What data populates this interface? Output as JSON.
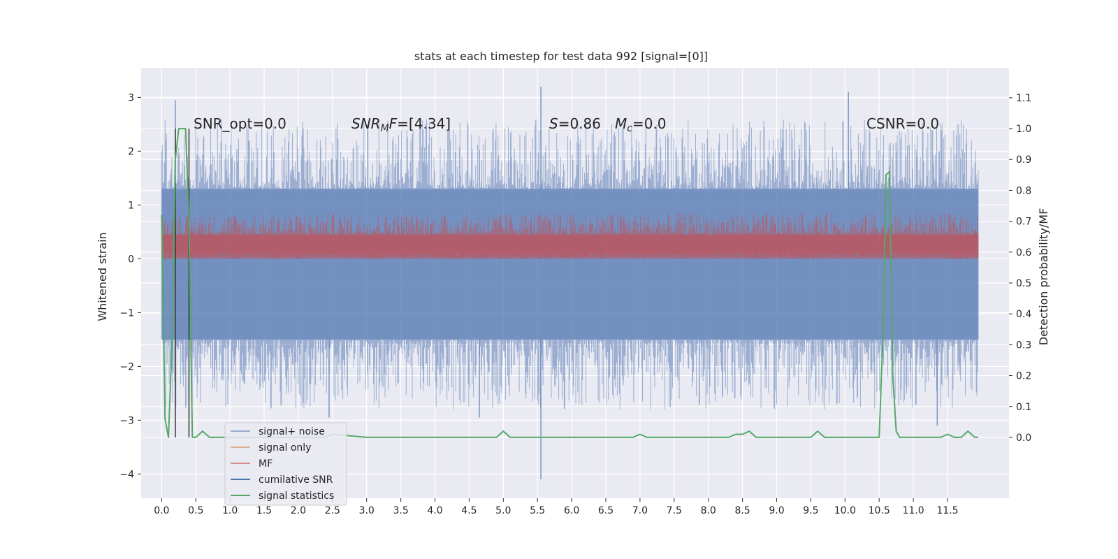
{
  "chart_data": {
    "type": "line",
    "title": "stats at each timestep for test data 992 [signal=[0]]",
    "ylabel": "Whitened strain",
    "y2label": "Detection probability/MF",
    "xlim": [
      -0.3,
      12.4
    ],
    "ylim": [
      -4.45,
      3.55
    ],
    "y2lim": [
      -0.197,
      1.197
    ],
    "xticks": [
      "0.0",
      "0.5",
      "1.0",
      "1.5",
      "2.0",
      "2.5",
      "3.0",
      "3.5",
      "4.0",
      "4.5",
      "5.0",
      "5.5",
      "6.0",
      "6.5",
      "7.0",
      "7.5",
      "8.0",
      "8.5",
      "9.0",
      "9.5",
      "10.0",
      "10.5",
      "11.0",
      "11.5"
    ],
    "yticks": [
      -4,
      -3,
      -2,
      -1,
      0,
      1,
      2,
      3
    ],
    "y2ticks": [
      0.0,
      0.1,
      0.2,
      0.3,
      0.4,
      0.5,
      0.6,
      0.7,
      0.8,
      0.9,
      1.0,
      1.1
    ],
    "grid": true,
    "legend_position": "lower-left",
    "annotations": {
      "snr_opt": "SNR_opt=0.0",
      "snr_mf_sym": "SNR",
      "snr_mf_sub": "M",
      "snr_mf_tail": "F=[4.34]",
      "s_sym": "S",
      "s_val": "=0.86",
      "mc_sym": "M",
      "mc_sub": "c",
      "mc_val": "=0.0",
      "csnr": "CSNR=0.0"
    },
    "series": [
      {
        "name": "signal+ noise",
        "color": "#4c72b0",
        "envelope_upper": 1.3,
        "envelope_lower": -1.5,
        "peaks": [
          [
            0.2,
            2.95
          ],
          [
            5.55,
            3.2
          ],
          [
            10.05,
            3.1
          ],
          [
            5.55,
            -4.1
          ],
          [
            2.45,
            -2.95
          ],
          [
            4.65,
            -2.95
          ],
          [
            11.35,
            -3.1
          ]
        ]
      },
      {
        "name": "signal only",
        "color": "#dd8452"
      },
      {
        "name": "MF",
        "color": "#c44e52",
        "envelope_upper": 0.6,
        "envelope_lower": 0.0
      },
      {
        "name": "cumilative SNR",
        "color": "#4c72b0"
      },
      {
        "name": "signal statistics",
        "color": "#55a868",
        "x": [
          0.0,
          0.05,
          0.1,
          0.15,
          0.2,
          0.25,
          0.3,
          0.35,
          0.4,
          0.45,
          0.5,
          0.6,
          0.7,
          1.0,
          2.0,
          2.4,
          2.5,
          3.0,
          4.0,
          4.9,
          5.0,
          5.1,
          5.5,
          5.6,
          6.0,
          6.9,
          7.0,
          7.1,
          8.0,
          8.3,
          8.4,
          8.5,
          8.6,
          8.7,
          9.0,
          9.5,
          9.6,
          9.7,
          10.0,
          10.5,
          10.55,
          10.6,
          10.65,
          10.7,
          10.75,
          10.8,
          11.0,
          11.4,
          11.5,
          11.6,
          11.7,
          11.8,
          11.9,
          11.95
        ],
        "values": [
          0.72,
          0.06,
          0.0,
          0.3,
          0.9,
          1.0,
          1.0,
          1.0,
          0.7,
          0.0,
          0.0,
          0.02,
          0.0,
          0.0,
          0.0,
          0.0,
          0.01,
          0.0,
          0.0,
          0.0,
          0.02,
          0.0,
          0.0,
          0.0,
          0.0,
          0.0,
          0.01,
          0.0,
          0.0,
          0.0,
          0.01,
          0.01,
          0.02,
          0.0,
          0.0,
          0.0,
          0.02,
          0.0,
          0.0,
          0.0,
          0.3,
          0.85,
          0.86,
          0.2,
          0.02,
          0.0,
          0.0,
          0.0,
          0.01,
          0.0,
          0.0,
          0.02,
          0.0,
          0.0
        ]
      }
    ],
    "vlines": {
      "color": "#333333",
      "x": [
        0.2,
        0.4
      ],
      "ymin": 0.0,
      "ymax": 1.0
    }
  }
}
